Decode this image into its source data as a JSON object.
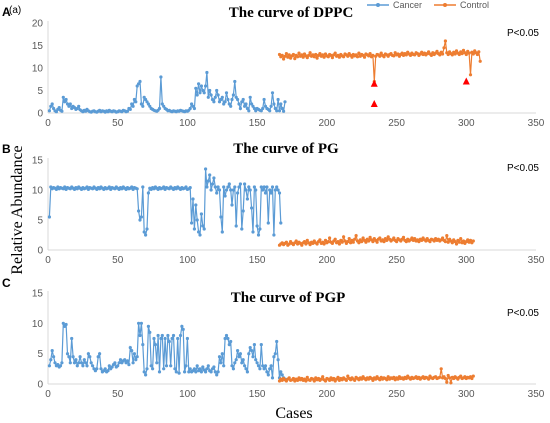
{
  "figure": {
    "ylabel": "Relative Abundance",
    "xlabel": "Cases",
    "legend": [
      {
        "name": "Cancer",
        "color": "#5b9bd5"
      },
      {
        "name": "Control",
        "color": "#ed7d31"
      }
    ],
    "panel_a_sublabel": "(a)"
  },
  "chart_data": [
    {
      "type": "line",
      "panel": "A",
      "title": "The curve of DPPC",
      "annotation": "P<0.05",
      "xlim": [
        0,
        350
      ],
      "ylim": [
        0,
        20
      ],
      "xticks": [
        0,
        50,
        100,
        150,
        200,
        250,
        300,
        350
      ],
      "yticks": [
        0,
        5,
        10,
        15,
        20
      ],
      "markers": [
        {
          "x": 234,
          "y": 6.5,
          "color": "#ff0000"
        },
        {
          "x": 234,
          "y": 2.0,
          "color": "#ff0000"
        },
        {
          "x": 300,
          "y": 7.0,
          "color": "#ff0000"
        }
      ],
      "series": [
        {
          "name": "Cancer",
          "color": "#5b9bd5",
          "x_start": 1,
          "values": [
            0.5,
            1.5,
            2.0,
            1.0,
            0.5,
            0.3,
            0.8,
            1.2,
            0.6,
            0.4,
            3.5,
            2.5,
            3.0,
            2.0,
            1.5,
            2.0,
            1.0,
            1.5,
            1.2,
            0.8,
            1.0,
            1.5,
            0.7,
            0.5,
            0.3,
            0.6,
            0.4,
            0.8,
            0.5,
            0.3,
            0.2,
            0.4,
            0.5,
            0.3,
            0.2,
            0.4,
            0.6,
            0.3,
            0.5,
            0.4,
            0.2,
            0.5,
            0.3,
            0.6,
            0.4,
            0.3,
            0.5,
            0.4,
            0.2,
            0.3,
            0.5,
            0.4,
            0.3,
            0.6,
            0.5,
            0.3,
            0.4,
            1.0,
            0.8,
            2.0,
            1.5,
            3.0,
            2.5,
            6.0,
            6.5,
            7.0,
            2.0,
            1.5,
            3.5,
            3.0,
            2.5,
            2.0,
            1.5,
            1.0,
            0.8,
            0.6,
            0.5,
            0.4,
            0.6,
            1.0,
            8.0,
            2.0,
            1.5,
            1.0,
            0.8,
            0.5,
            0.6,
            0.4,
            0.3,
            0.5,
            0.4,
            0.3,
            0.5,
            0.4,
            0.6,
            0.5,
            0.4,
            0.3,
            0.5,
            0.4,
            0.6,
            1.0,
            2.0,
            1.5,
            1.0,
            5.5,
            4.0,
            6.5,
            4.5,
            6.0,
            5.0,
            4.5,
            6.0,
            9.0,
            3.5,
            5.0,
            4.0,
            3.0,
            2.5,
            3.5,
            5.0,
            4.0,
            2.5,
            3.0,
            3.5,
            2.0,
            2.5,
            4.5,
            3.0,
            2.0,
            1.5,
            3.0,
            4.0,
            7.0,
            3.5,
            3.0,
            2.0,
            1.0,
            2.5,
            3.0,
            1.5,
            2.0,
            1.0,
            0.5,
            3.5,
            2.0,
            1.5,
            1.0,
            0.5,
            1.0,
            0.8,
            0.6,
            0.5,
            1.0,
            3.0,
            1.5,
            1.0,
            0.8,
            0.5,
            1.5,
            4.5,
            2.0,
            1.0,
            0.5,
            3.0,
            0.5,
            2.0,
            1.0,
            0.4,
            2.5
          ]
        },
        {
          "name": "Control",
          "color": "#ed7d31",
          "x_start": 166,
          "values": [
            13.0,
            12.5,
            12.8,
            12.0,
            12.6,
            13.2,
            12.4,
            12.9,
            12.2,
            12.7,
            13.0,
            12.1,
            12.8,
            12.5,
            13.3,
            12.6,
            12.9,
            12.4,
            13.1,
            12.7,
            12.3,
            12.8,
            13.4,
            12.6,
            12.9,
            12.5,
            13.0,
            12.2,
            12.8,
            13.2,
            12.6,
            12.9,
            12.4,
            13.1,
            12.7,
            12.5,
            13.0,
            12.8,
            12.3,
            12.9,
            13.3,
            12.6,
            12.8,
            12.4,
            13.0,
            12.7,
            12.5,
            13.1,
            12.9,
            12.6,
            13.2,
            12.8,
            12.4,
            13.0,
            12.7,
            12.9,
            12.5,
            13.3,
            12.6,
            13.0,
            12.8,
            12.4,
            13.1,
            12.9,
            12.7,
            13.2,
            12.5,
            12.8,
            7.0,
            12.6,
            13.0,
            12.9,
            12.6,
            13.3,
            12.8,
            12.5,
            13.1,
            12.9,
            12.6,
            13.0,
            13.2,
            12.8,
            12.7,
            13.4,
            12.9,
            13.1,
            12.6,
            13.0,
            13.3,
            12.8,
            13.2,
            12.9,
            13.5,
            13.1,
            12.8,
            13.3,
            13.0,
            12.9,
            13.4,
            13.2,
            12.8,
            13.1,
            13.5,
            13.0,
            13.3,
            12.9,
            13.2,
            13.6,
            13.1,
            12.8,
            13.4,
            13.0,
            13.3,
            13.7,
            13.2,
            12.9,
            13.5,
            13.1,
            14.5,
            16.0,
            13.4,
            13.0,
            13.6,
            13.2,
            12.9,
            13.5,
            13.1,
            13.8,
            13.3,
            13.0,
            13.6,
            13.2,
            13.9,
            13.4,
            13.0,
            13.7,
            13.3,
            8.5,
            13.5,
            13.1,
            13.8,
            13.4,
            13.0,
            13.6,
            11.5
          ]
        }
      ]
    },
    {
      "type": "line",
      "panel": "B",
      "title": "The curve of PG",
      "annotation": "P<0.05",
      "xlim": [
        0,
        350
      ],
      "ylim": [
        0,
        15
      ],
      "xticks": [
        0,
        50,
        100,
        150,
        200,
        250,
        300,
        350
      ],
      "yticks": [
        0,
        5,
        10,
        15
      ],
      "series": [
        {
          "name": "Cancer",
          "color": "#5b9bd5",
          "x_start": 1,
          "values": [
            5.5,
            10.5,
            10.2,
            10.4,
            10.3,
            10.1,
            10.5,
            10.2,
            10.4,
            10.3,
            10.2,
            10.5,
            10.1,
            10.4,
            10.3,
            10.2,
            10.5,
            10.3,
            10.1,
            10.4,
            10.2,
            10.5,
            10.3,
            10.1,
            10.4,
            10.2,
            10.3,
            10.5,
            10.1,
            10.4,
            10.3,
            10.2,
            10.5,
            10.3,
            10.1,
            10.4,
            10.2,
            10.5,
            10.3,
            10.1,
            10.4,
            10.2,
            10.3,
            10.5,
            10.1,
            10.4,
            10.3,
            10.2,
            10.5,
            10.3,
            10.1,
            10.4,
            10.2,
            10.5,
            10.3,
            10.1,
            10.4,
            10.2,
            10.3,
            10.5,
            10.1,
            10.4,
            10.3,
            10.2,
            6.5,
            5.0,
            5.5,
            10.5,
            3.0,
            2.5,
            3.5,
            9.5,
            10.3,
            10.1,
            10.4,
            10.2,
            10.5,
            10.3,
            10.1,
            10.4,
            10.2,
            10.3,
            10.5,
            10.1,
            10.4,
            10.3,
            10.2,
            10.5,
            10.3,
            10.1,
            10.4,
            10.2,
            10.5,
            10.3,
            10.1,
            10.4,
            10.2,
            10.3,
            10.5,
            10.1,
            10.2,
            10.4,
            4.5,
            8.5,
            3.5,
            7.5,
            5.0,
            3.0,
            2.5,
            6.0,
            4.0,
            3.5,
            13.5,
            10.5,
            11.5,
            12.5,
            10.0,
            11.0,
            12.0,
            10.5,
            9.5,
            10.5,
            10.0,
            5.5,
            3.0,
            10.5,
            9.0,
            10.0,
            10.5,
            11.0,
            10.0,
            7.5,
            10.0,
            10.5,
            4.0,
            9.5,
            10.5,
            11.0,
            3.5,
            6.5,
            11.0,
            10.0,
            8.5,
            10.5,
            10.0,
            7.0,
            3.0,
            10.5,
            10.0,
            4.0,
            2.5,
            3.5,
            10.5,
            10.0,
            10.5,
            9.5,
            10.5,
            4.5,
            10.0,
            9.5,
            10.5,
            2.5,
            10.0,
            10.5,
            10.0,
            9.5,
            4.5
          ]
        },
        {
          "name": "Control",
          "color": "#ed7d31",
          "x_start": 166,
          "values": [
            0.8,
            1.0,
            1.2,
            0.9,
            1.1,
            1.3,
            0.8,
            1.0,
            1.4,
            1.1,
            0.9,
            1.2,
            1.5,
            1.0,
            1.3,
            1.1,
            0.8,
            1.2,
            1.4,
            1.0,
            1.6,
            1.2,
            0.9,
            1.3,
            1.1,
            1.5,
            1.2,
            1.0,
            1.4,
            1.7,
            1.1,
            1.3,
            1.0,
            1.6,
            1.2,
            1.4,
            2.0,
            1.3,
            1.1,
            1.5,
            1.8,
            1.2,
            1.4,
            1.0,
            1.6,
            1.3,
            2.2,
            1.5,
            1.1,
            1.4,
            1.9,
            1.2,
            1.6,
            1.3,
            1.8,
            2.4,
            1.5,
            1.2,
            1.7,
            1.4,
            2.0,
            1.6,
            1.3,
            1.8,
            1.5,
            2.1,
            1.7,
            1.4,
            1.9,
            1.6,
            1.3,
            1.8,
            2.0,
            1.5,
            1.7,
            1.4,
            1.9,
            1.6,
            2.2,
            1.8,
            1.5,
            1.7,
            2.0,
            1.6,
            1.4,
            1.9,
            1.7,
            1.5,
            1.8,
            2.1,
            1.6,
            1.4,
            1.8,
            1.5,
            1.7,
            2.0,
            1.6,
            1.9,
            1.5,
            1.7,
            1.4,
            1.8,
            1.6,
            2.0,
            1.7,
            1.5,
            1.9,
            1.6,
            1.4,
            1.8,
            1.7,
            1.5,
            1.9,
            1.6,
            1.8,
            1.5,
            1.7,
            2.0,
            1.6,
            1.4,
            2.4,
            1.3,
            1.8,
            1.5,
            1.2,
            1.7,
            1.4,
            1.0,
            1.6,
            1.3,
            1.9,
            1.2,
            1.5,
            1.1,
            1.4,
            1.7,
            1.3,
            1.6,
            1.2,
            1.5
          ]
        }
      ]
    },
    {
      "type": "line",
      "panel": "C",
      "title": "The curve of PGP",
      "annotation": "P<0.05",
      "xlim": [
        0,
        350
      ],
      "ylim": [
        0,
        15
      ],
      "xticks": [
        0,
        50,
        100,
        150,
        200,
        250,
        300,
        350
      ],
      "yticks": [
        0,
        5,
        10,
        15
      ],
      "series": [
        {
          "name": "Cancer",
          "color": "#5b9bd5",
          "x_start": 1,
          "values": [
            3.0,
            4.0,
            5.5,
            4.5,
            3.5,
            3.0,
            3.2,
            2.8,
            3.0,
            3.5,
            10.0,
            9.5,
            9.8,
            5.0,
            4.5,
            3.5,
            7.5,
            4.5,
            3.5,
            4.0,
            3.0,
            3.5,
            4.5,
            3.5,
            3.0,
            4.0,
            3.5,
            3.0,
            5.0,
            4.5,
            3.5,
            3.0,
            2.5,
            2.2,
            2.5,
            4.5,
            5.0,
            2.5,
            2.0,
            2.2,
            2.5,
            2.0,
            2.2,
            3.0,
            2.5,
            2.8,
            3.2,
            3.5,
            2.8,
            3.0,
            3.5,
            4.0,
            3.5,
            3.8,
            4.0,
            3.5,
            3.8,
            3.2,
            6.0,
            5.5,
            3.5,
            5.0,
            4.0,
            4.5,
            10.0,
            8.0,
            10.0,
            6.5,
            2.0,
            1.5,
            2.5,
            9.5,
            8.5,
            3.0,
            2.5,
            7.5,
            6.5,
            3.5,
            8.0,
            2.0,
            7.5,
            8.0,
            2.5,
            7.5,
            3.0,
            8.0,
            7.0,
            3.0,
            7.5,
            8.0,
            2.5,
            2.0,
            7.5,
            1.8,
            8.0,
            9.5,
            9.0,
            2.0,
            3.0,
            7.5,
            2.0,
            2.5,
            2.0,
            2.2,
            2.5,
            2.0,
            3.0,
            2.2,
            2.5,
            2.0,
            2.8,
            2.3,
            2.0,
            2.5,
            3.0,
            2.2,
            2.0,
            2.5,
            2.8,
            2.0,
            1.5,
            2.0,
            4.5,
            3.5,
            5.0,
            3.0,
            7.5,
            8.0,
            7.5,
            6.5,
            7.0,
            3.0,
            2.5,
            3.5,
            4.0,
            5.5,
            4.5,
            5.0,
            3.5,
            4.0,
            3.0,
            2.5,
            2.0,
            5.0,
            6.0,
            5.5,
            4.5,
            6.5,
            4.0,
            3.5,
            3.0,
            2.5,
            6.5,
            3.0,
            2.5,
            3.0,
            2.0,
            1.5,
            2.5,
            3.0,
            1.0,
            4.5,
            5.0,
            7.0,
            4.0,
            1.0,
            2.0,
            1.5,
            1.0,
            0.8
          ]
        },
        {
          "name": "Control",
          "color": "#ed7d31",
          "x_start": 166,
          "values": [
            0.5,
            0.8,
            0.6,
            0.9,
            0.7,
            0.5,
            0.8,
            1.0,
            0.6,
            0.7,
            0.9,
            0.5,
            0.8,
            0.6,
            1.0,
            0.7,
            0.9,
            0.6,
            0.8,
            0.5,
            1.1,
            0.7,
            0.6,
            0.9,
            0.8,
            0.5,
            1.0,
            0.7,
            0.9,
            0.6,
            0.8,
            1.2,
            0.7,
            0.5,
            0.9,
            0.8,
            0.6,
            1.0,
            0.7,
            0.9,
            0.5,
            0.8,
            1.1,
            0.6,
            0.9,
            0.7,
            1.0,
            0.8,
            0.6,
            1.3,
            0.9,
            0.7,
            1.0,
            0.8,
            0.6,
            1.1,
            0.9,
            0.7,
            1.0,
            0.8,
            1.2,
            0.9,
            0.7,
            1.0,
            0.8,
            1.1,
            0.9,
            0.6,
            1.0,
            0.8,
            1.2,
            0.9,
            0.7,
            1.1,
            0.8,
            1.0,
            0.9,
            0.7,
            1.2,
            0.8,
            1.0,
            0.9,
            1.1,
            0.7,
            1.0,
            0.8,
            1.2,
            0.9,
            1.0,
            0.8,
            1.1,
            0.9,
            1.3,
            1.0,
            0.8,
            1.1,
            0.9,
            1.0,
            1.2,
            0.9,
            1.1,
            0.8,
            1.0,
            1.2,
            0.9,
            1.1,
            1.0,
            0.8,
            1.3,
            1.0,
            0.9,
            1.1,
            1.2,
            0.9,
            1.0,
            1.1,
            2.5,
            1.0,
            1.2,
            0.9,
            0.3,
            1.4,
            1.0,
            0.2,
            1.1,
            0.9,
            1.2,
            1.0,
            0.8,
            1.1,
            1.3,
            0.9,
            1.0,
            1.2,
            0.9,
            1.1,
            1.0,
            1.2,
            0.9,
            1.3
          ]
        }
      ]
    }
  ]
}
